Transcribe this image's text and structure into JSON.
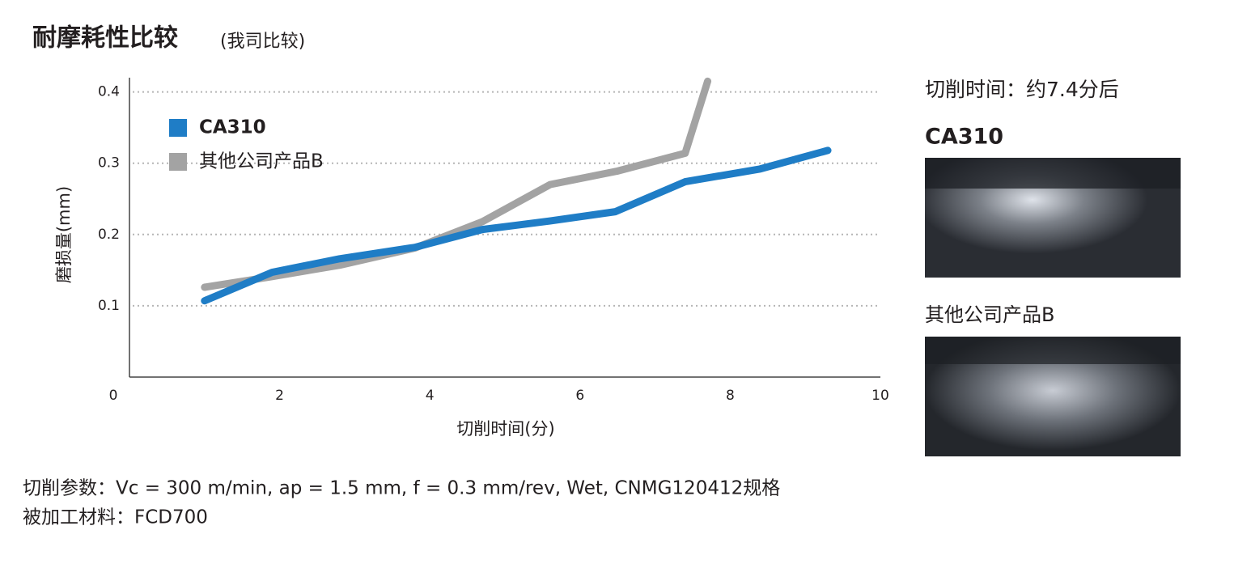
{
  "chart_data": {
    "type": "line",
    "title": "耐摩耗性比较",
    "subtitle": "(我司比较)",
    "x_label": "切削时间(分)",
    "y_label": "磨损量(mm)",
    "xlim": [
      0,
      10
    ],
    "xticks": [
      0,
      2,
      4,
      6,
      8,
      10
    ],
    "ylim": [
      0,
      0.42
    ],
    "yticks": [
      0.1,
      0.2,
      0.3,
      0.4
    ],
    "grid": true,
    "legend": "upper left",
    "series": [
      {
        "name": "CA310",
        "color": "#1f7dc6",
        "x": [
          1.0,
          1.9,
          2.8,
          3.8,
          4.7,
          5.6,
          6.47,
          7.4,
          8.4,
          9.3
        ],
        "values": [
          0.107,
          0.147,
          0.166,
          0.182,
          0.207,
          0.219,
          0.232,
          0.274,
          0.292,
          0.318
        ]
      },
      {
        "name": "其他公司产品B",
        "color": "#a3a3a3",
        "x": [
          1.0,
          1.9,
          2.8,
          3.8,
          4.7,
          5.6,
          6.5,
          7.4,
          7.7
        ],
        "values": [
          0.126,
          0.141,
          0.157,
          0.181,
          0.218,
          0.27,
          0.289,
          0.314,
          0.415
        ]
      }
    ]
  },
  "panel": {
    "heading": "切削时间：约7.4分后",
    "image_labels": [
      "CA310",
      "其他公司产品B"
    ]
  },
  "notes": [
    "切削参数：Vc = 300 m/min, ap = 1.5 mm, f = 0.3 mm/rev, Wet, CNMG120412规格",
    "被加工材料：FCD700"
  ]
}
